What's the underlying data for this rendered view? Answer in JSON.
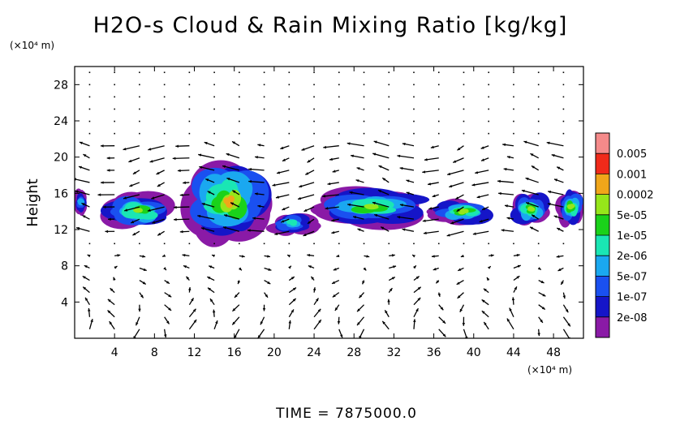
{
  "chart_data": {
    "type": "contour_vector",
    "title": "H2O-s Cloud & Rain Mixing Ratio [kg/kg]",
    "ylabel": "Height",
    "y_unit": "(×10⁴ m)",
    "x_unit": "(×10⁴ m)",
    "xlim": [
      0,
      51
    ],
    "ylim": [
      0,
      30
    ],
    "x_ticks": [
      4,
      8,
      12,
      16,
      20,
      24,
      28,
      32,
      36,
      40,
      44,
      48
    ],
    "y_ticks": [
      4,
      8,
      12,
      16,
      20,
      24,
      28
    ],
    "colorbar": {
      "levels": [
        "2e-08",
        "1e-07",
        "5e-07",
        "2e-06",
        "1e-05",
        "5e-05",
        "0.0002",
        "0.001",
        "0.005"
      ],
      "colors": [
        "#8a1aa6",
        "#1515c8",
        "#1a50f0",
        "#1aa8f0",
        "#1ae6b4",
        "#1ad21a",
        "#96e61a",
        "#f0a61a",
        "#f02a1a",
        "#f58a8a"
      ]
    },
    "cloud_regions": [
      {
        "x": [
          0,
          1.2
        ],
        "y": [
          13.5,
          16.5
        ],
        "max_level": "5e-07"
      },
      {
        "x": [
          3,
          10
        ],
        "y": [
          12.0,
          16.0
        ],
        "max_level": "5e-05"
      },
      {
        "x": [
          11.5,
          19.5
        ],
        "y": [
          10.8,
          19.5
        ],
        "max_level": "0.0002"
      },
      {
        "x": [
          19.5,
          24
        ],
        "y": [
          11.5,
          14.0
        ],
        "max_level": "2e-06"
      },
      {
        "x": [
          24.5,
          34.5
        ],
        "y": [
          12.5,
          16.5
        ],
        "max_level": "5e-05"
      },
      {
        "x": [
          36,
          42
        ],
        "y": [
          12.5,
          15.5
        ],
        "max_level": "5e-05"
      },
      {
        "x": [
          44,
          47.5
        ],
        "y": [
          12.5,
          16.0
        ],
        "max_level": "5e-05"
      },
      {
        "x": [
          48.5,
          51
        ],
        "y": [
          12.5,
          16.5
        ],
        "max_level": "5e-05"
      }
    ],
    "wind_vectors": "grid of flow arrows"
  },
  "footer": {
    "time_label": "TIME = 7875000.0"
  }
}
